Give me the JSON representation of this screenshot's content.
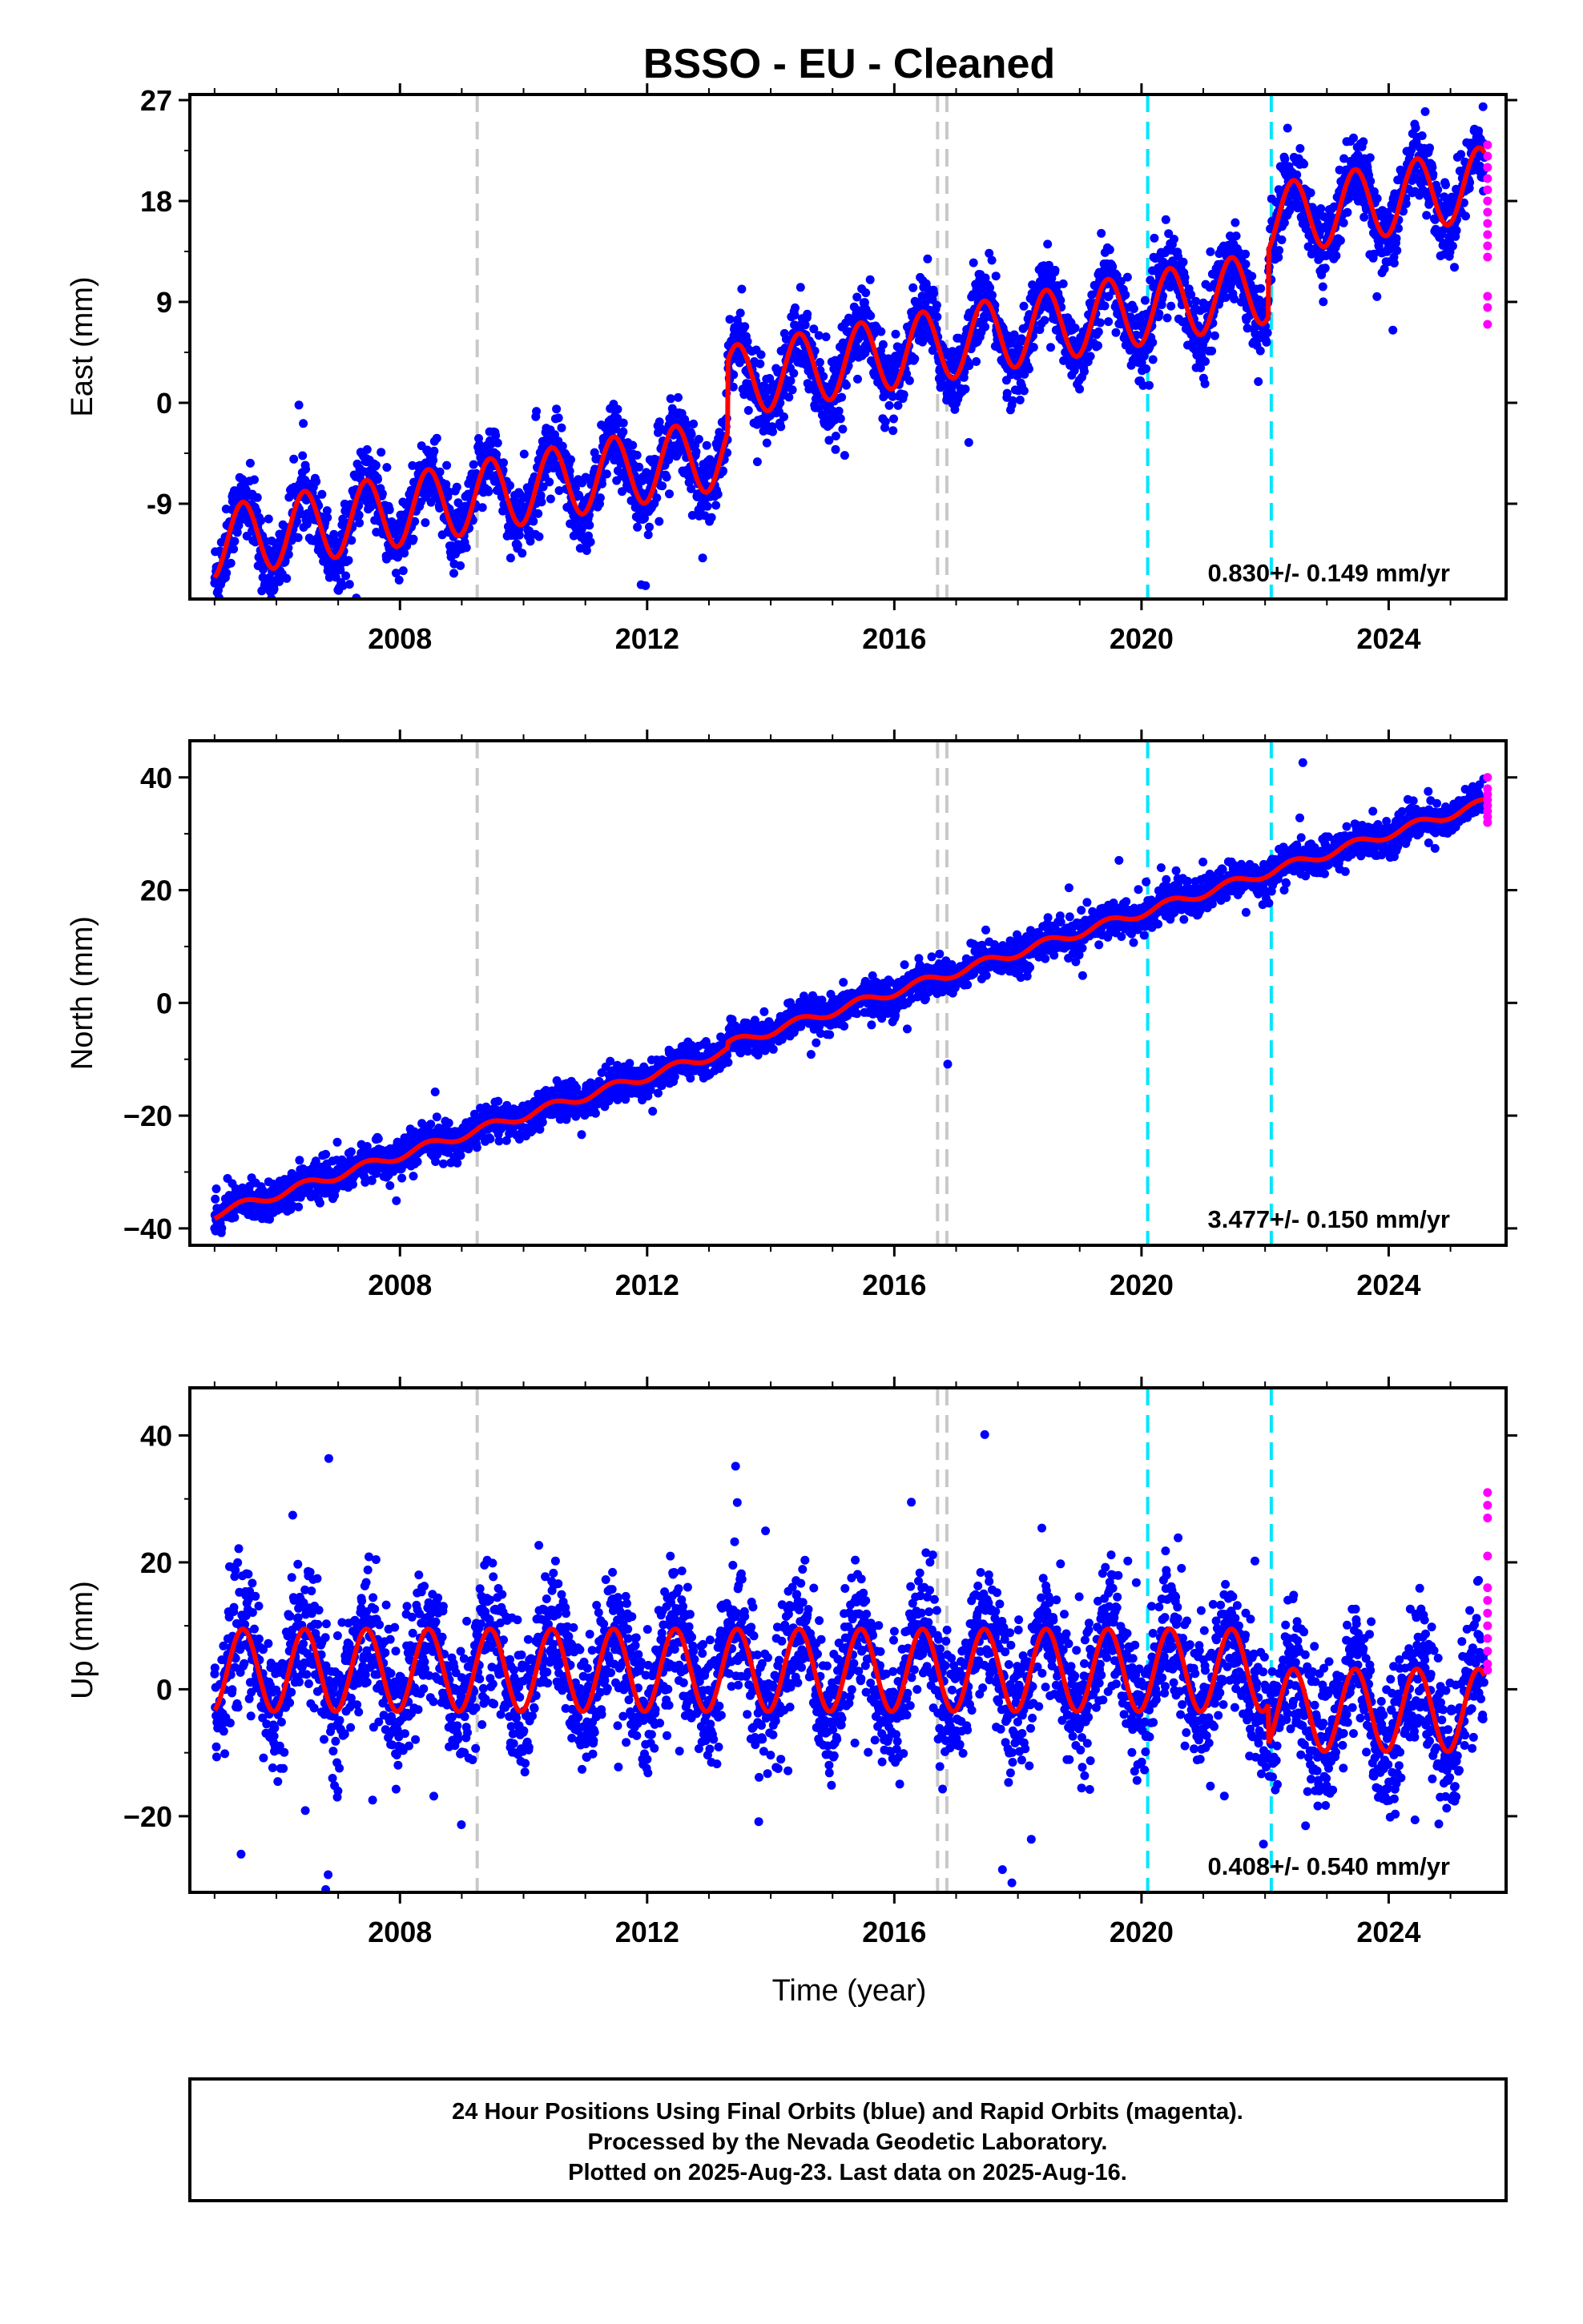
{
  "title": "BSSO  - EU - Cleaned",
  "colors": {
    "final_orbits": "#0000ff",
    "rapid_orbits": "#ff00ff",
    "model_fit": "#ff0000",
    "equipment_change": "#c8c8c8",
    "earthquake": "#00e5ff",
    "frame": "#000000"
  },
  "xaxis": {
    "label": "Time (year)",
    "ticks": [
      "2008",
      "2012",
      "2016",
      "2020",
      "2024"
    ]
  },
  "caption": {
    "line1": "24 Hour Positions Using Final Orbits (blue) and Rapid Orbits (magenta).",
    "line2": "Processed by the Nevada Geodetic Laboratory.",
    "line3": "Plotted on 2025-Aug-23. Last data on 2025-Aug-16."
  },
  "chart_data": [
    {
      "type": "scatter",
      "component": "east",
      "ylabel": "East (mm)",
      "rate_label": "0.830+/- 0.149 mm/yr",
      "xlim": [
        2004.6,
        2025.9
      ],
      "ylim": [
        -17.5,
        27.5
      ],
      "yticks": [
        "27",
        "18",
        "9",
        "0",
        "-9"
      ],
      "ytick_values": [
        27,
        18,
        9,
        0,
        -9
      ],
      "xtick_values": [
        2008,
        2012,
        2016,
        2020,
        2024
      ],
      "model": {
        "start": 2005.0,
        "end": 2025.55,
        "segments": [
          {
            "from": 2005.0,
            "to": 2013.3,
            "intercept": -12.5,
            "rate": 0.97,
            "amplitude": 3.2
          },
          {
            "from": 2013.3,
            "to": 2022.05,
            "intercept": -6.2,
            "rate": 0.97,
            "amplitude": 3.2
          },
          {
            "from": 2022.05,
            "to": 2025.55,
            "intercept": -0.3,
            "rate": 0.97,
            "amplitude": 3.2
          }
        ]
      },
      "scatter_sigma": 1.6,
      "rapid_points": {
        "x": 2025.6,
        "y": [
          23,
          22,
          21,
          20,
          19,
          18,
          17,
          16,
          15,
          14,
          13,
          9.5,
          8.5,
          7
        ]
      },
      "equipment_changes": [
        2009.25,
        2016.7,
        2016.85
      ],
      "earthquakes": [
        2020.1,
        2022.1
      ]
    },
    {
      "type": "scatter",
      "component": "north",
      "ylabel": "North (mm)",
      "rate_label": "3.477+/- 0.150 mm/yr",
      "xlim": [
        2004.6,
        2025.9
      ],
      "ylim": [
        -43,
        46.5
      ],
      "yticks": [
        "40",
        "20",
        "0",
        "−20",
        "−40"
      ],
      "ytick_values": [
        40,
        20,
        0,
        -20,
        -40
      ],
      "xtick_values": [
        2008,
        2012,
        2016,
        2020,
        2024
      ],
      "model": {
        "start": 2005.0,
        "end": 2025.55,
        "segments": [
          {
            "from": 2005.0,
            "to": 2013.3,
            "intercept": -37.5,
            "rate": 3.5,
            "amplitude": 0.8
          },
          {
            "from": 2013.3,
            "to": 2025.55,
            "intercept": -36.5,
            "rate": 3.5,
            "amplitude": 0.8
          }
        ]
      },
      "scatter_sigma": 1.5,
      "rapid_points": {
        "x": 2025.6,
        "y": [
          40,
          38,
          37,
          36,
          35,
          34,
          33,
          32
        ]
      },
      "equipment_changes": [
        2009.25,
        2016.7,
        2016.85
      ],
      "earthquakes": [
        2020.1,
        2022.1
      ]
    },
    {
      "type": "scatter",
      "component": "up",
      "ylabel": "Up (mm)",
      "rate_label": "0.408+/- 0.540 mm/yr",
      "xlim": [
        2004.6,
        2025.9
      ],
      "ylim": [
        -32,
        47.5
      ],
      "yticks": [
        "40",
        "20",
        "0",
        "−20"
      ],
      "ytick_values": [
        40,
        20,
        0,
        -20
      ],
      "xtick_values": [
        2008,
        2012,
        2016,
        2020,
        2024
      ],
      "model": {
        "start": 2005.0,
        "end": 2025.55,
        "segments": [
          {
            "from": 2005.0,
            "to": 2022.05,
            "intercept": 3.0,
            "rate": 0.0,
            "amplitude": 6.5
          },
          {
            "from": 2022.05,
            "to": 2025.55,
            "intercept": -3.3,
            "rate": 0.0,
            "amplitude": 6.5
          }
        ]
      },
      "scatter_sigma": 5.0,
      "rapid_points": {
        "x": 2025.6,
        "y": [
          31,
          29,
          27,
          21,
          16,
          14,
          12,
          10,
          8,
          6,
          4,
          3
        ]
      },
      "equipment_changes": [
        2009.25,
        2016.7,
        2016.85
      ],
      "earthquakes": [
        2020.1,
        2022.1
      ]
    }
  ]
}
